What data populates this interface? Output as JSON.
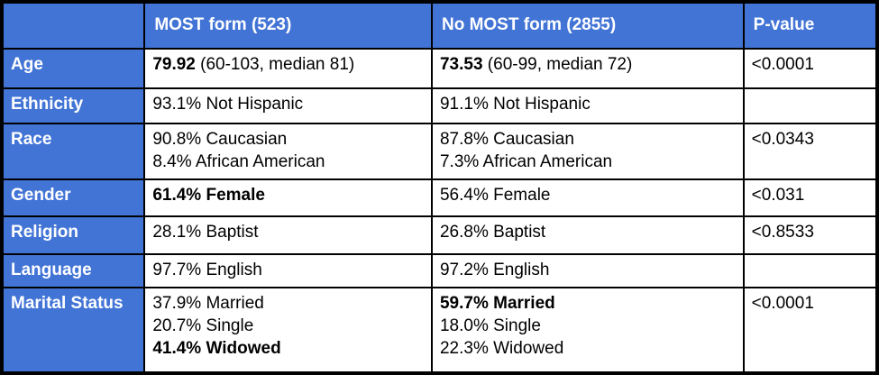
{
  "colors": {
    "header_bg": "#4274d6",
    "header_text": "#ffffff",
    "body_bg": "#ffffff",
    "body_text": "#000000",
    "border": "#000000"
  },
  "table": {
    "columns": [
      "",
      "MOST form (523)",
      "No MOST form (2855)",
      "P-value"
    ],
    "rows": [
      {
        "label": "Age",
        "most_form": [
          [
            {
              "t": "79.92",
              "b": true
            },
            {
              "t": " (60-103, median 81)",
              "b": false
            }
          ]
        ],
        "no_most_form": [
          [
            {
              "t": "73.53",
              "b": true
            },
            {
              "t": " (60-99, median 72)",
              "b": false
            }
          ]
        ],
        "p_value": "<0.0001"
      },
      {
        "label": "Ethnicity",
        "most_form": [
          [
            {
              "t": "93.1% Not Hispanic",
              "b": false
            }
          ]
        ],
        "no_most_form": [
          [
            {
              "t": "91.1% Not Hispanic",
              "b": false
            }
          ]
        ],
        "p_value": ""
      },
      {
        "label": "Race",
        "most_form": [
          [
            {
              "t": "90.8% Caucasian",
              "b": false
            }
          ],
          [
            {
              "t": "8.4% African American",
              "b": false
            }
          ]
        ],
        "no_most_form": [
          [
            {
              "t": "87.8% Caucasian",
              "b": false
            }
          ],
          [
            {
              "t": "7.3% African American",
              "b": false
            }
          ]
        ],
        "p_value": "<0.0343"
      },
      {
        "label": "Gender",
        "most_form": [
          [
            {
              "t": "61.4% Female",
              "b": true
            }
          ]
        ],
        "no_most_form": [
          [
            {
              "t": "56.4% Female",
              "b": false
            }
          ]
        ],
        "p_value": "<0.031"
      },
      {
        "label": "Religion",
        "most_form": [
          [
            {
              "t": "28.1% Baptist",
              "b": false
            }
          ]
        ],
        "no_most_form": [
          [
            {
              "t": "26.8% Baptist",
              "b": false
            }
          ]
        ],
        "p_value": "<0.8533"
      },
      {
        "label": "Language",
        "most_form": [
          [
            {
              "t": "97.7% English",
              "b": false
            }
          ]
        ],
        "no_most_form": [
          [
            {
              "t": "97.2% English",
              "b": false
            }
          ]
        ],
        "p_value": ""
      },
      {
        "label": "Marital Status",
        "most_form": [
          [
            {
              "t": "37.9% Married",
              "b": false
            }
          ],
          [
            {
              "t": "20.7% Single",
              "b": false
            }
          ],
          [
            {
              "t": "41.4% Widowed",
              "b": true
            }
          ]
        ],
        "no_most_form": [
          [
            {
              "t": "59.7% Married",
              "b": true
            }
          ],
          [
            {
              "t": "18.0% Single",
              "b": false
            }
          ],
          [
            {
              "t": "22.3% Widowed",
              "b": false
            }
          ]
        ],
        "p_value": "<0.0001"
      }
    ]
  }
}
